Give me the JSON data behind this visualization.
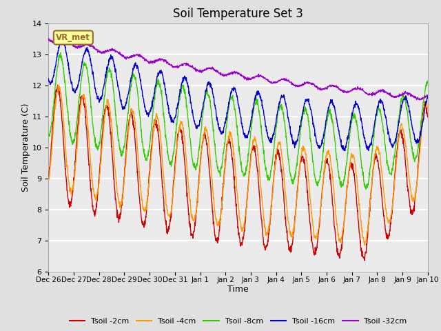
{
  "title": "Soil Temperature Set 3",
  "xlabel": "Time",
  "ylabel": "Soil Temperature (C)",
  "ylim": [
    6.0,
    14.0
  ],
  "yticks": [
    6.0,
    7.0,
    8.0,
    9.0,
    10.0,
    11.0,
    12.0,
    13.0,
    14.0
  ],
  "n_points": 1500,
  "days": 15.5,
  "colors": {
    "tsoil_2cm": "#cc0000",
    "tsoil_4cm": "#ff9900",
    "tsoil_8cm": "#33cc00",
    "tsoil_16cm": "#0000cc",
    "tsoil_32cm": "#9900cc"
  },
  "legend_labels": [
    "Tsoil -2cm",
    "Tsoil -4cm",
    "Tsoil -8cm",
    "Tsoil -16cm",
    "Tsoil -32cm"
  ],
  "xtick_labels": [
    "Dec 26",
    "Dec 27",
    "Dec 28",
    "Dec 29",
    "Dec 30",
    "Dec 31",
    "Jan 1",
    "Jan 2",
    "Jan 3",
    "Jan 4",
    "Jan 5",
    "Jan 6",
    "Jan 7",
    "Jan 8",
    "Jan 9",
    "Jan 10"
  ],
  "station_label": "VR_met",
  "station_box_facecolor": "#ffff99",
  "station_box_edgecolor": "#996633",
  "background_color": "#e0e0e0",
  "plot_area_color": "#ebebeb",
  "grid_color": "#ffffff",
  "linewidth": 1.0
}
